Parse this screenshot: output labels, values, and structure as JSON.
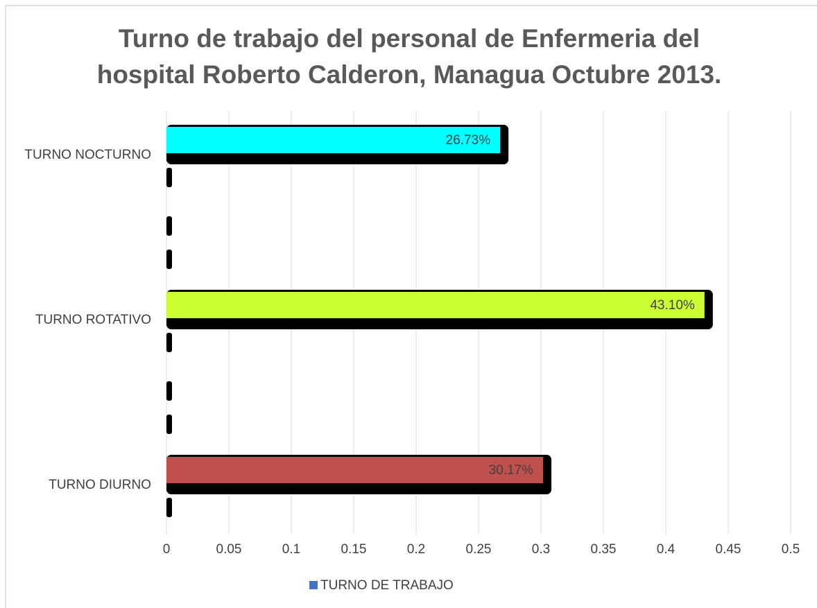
{
  "chart_data": {
    "type": "bar",
    "orientation": "horizontal",
    "title": "Turno de trabajo del personal de Enfermeria del hospital Roberto Calderon, Managua Octubre 2013.",
    "categories": [
      "TURNO NOCTURNO",
      "TURNO ROTATIVO",
      "TURNO DIURNO"
    ],
    "series": [
      {
        "name": "TURNO DE TRABAJO",
        "color": "#4472c4",
        "colors": [
          "#00ffff",
          "#ccff33",
          "#c0504d"
        ],
        "values": [
          0.2673,
          0.431,
          0.3017
        ],
        "value_labels": [
          "26.73%",
          "43.10%",
          "30.17%"
        ]
      }
    ],
    "xlim": [
      0,
      0.5
    ],
    "xticks": [
      0,
      0.05,
      0.1,
      0.15,
      0.2,
      0.25,
      0.3,
      0.35,
      0.4,
      0.45,
      0.5
    ],
    "grid": true,
    "legend": "bottom"
  }
}
